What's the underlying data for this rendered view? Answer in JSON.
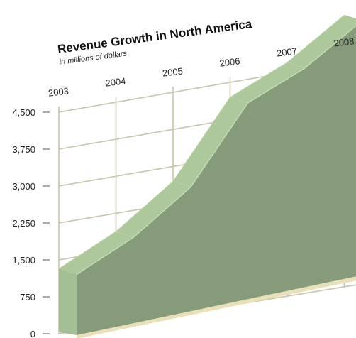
{
  "chart_data": {
    "type": "area",
    "title": "Revenue Growth in North America",
    "subtitle": "in millions of dollars",
    "x": [
      "2003",
      "2004",
      "2005",
      "2006",
      "2007",
      "2008"
    ],
    "values": [
      1320,
      1880,
      2700,
      4200,
      4700,
      5450
    ],
    "yticks": [
      "0",
      "750",
      "1,500",
      "2,250",
      "3,000",
      "3,750",
      "4,500"
    ],
    "ylim": [
      0,
      4500
    ],
    "grid": true,
    "legend": "none",
    "style": "3d-perspective",
    "colors": {
      "area_front": "#859b7a",
      "area_top": "#adc99b",
      "area_side": "#a5bf95",
      "floor": "#e8e0b8",
      "grid": "#c9c4aa"
    }
  }
}
